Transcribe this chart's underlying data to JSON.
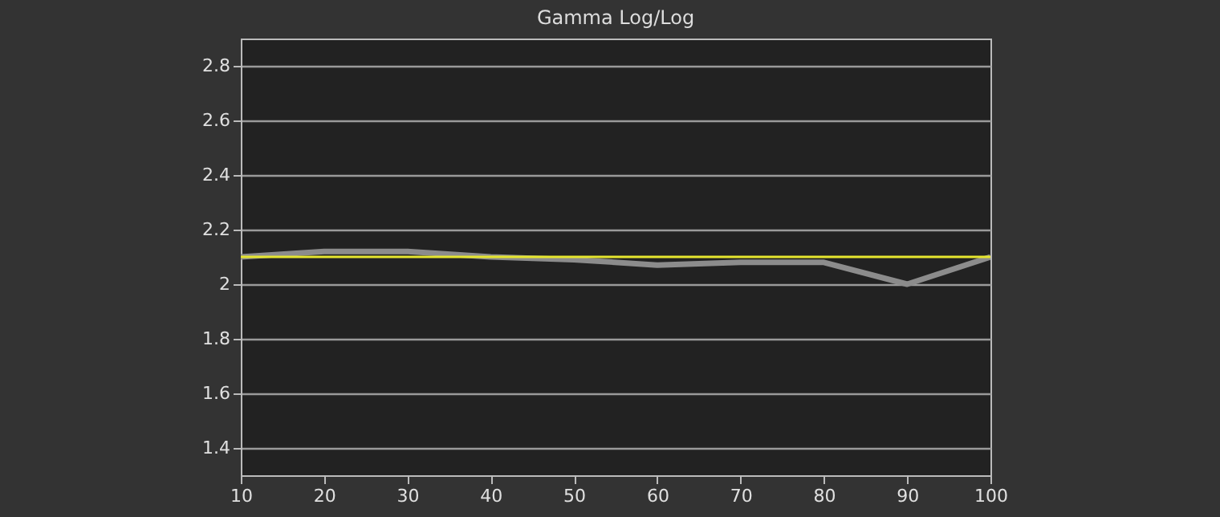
{
  "chart_data": {
    "type": "line",
    "title": "Gamma Log/Log",
    "x": [
      10,
      20,
      30,
      40,
      50,
      60,
      70,
      80,
      90,
      100
    ],
    "series": [
      {
        "color": "#8c8c8c",
        "values": [
          2.1,
          2.12,
          2.12,
          2.1,
          2.09,
          2.07,
          2.08,
          2.08,
          2.0,
          2.1
        ]
      }
    ],
    "ref_lines": [
      {
        "axis": "y",
        "value": 2.1,
        "color": "#e6e62e"
      }
    ],
    "xlim": [
      10,
      100
    ],
    "xticks": [
      10,
      20,
      30,
      40,
      50,
      60,
      70,
      80,
      90,
      100
    ],
    "ylim": [
      1.3,
      2.9
    ],
    "yticks": [
      1.4,
      1.6,
      1.8,
      2,
      2.2,
      2.4,
      2.6,
      2.8
    ],
    "grid": "y",
    "legend": false,
    "marker": "none",
    "line_style": "solid"
  }
}
